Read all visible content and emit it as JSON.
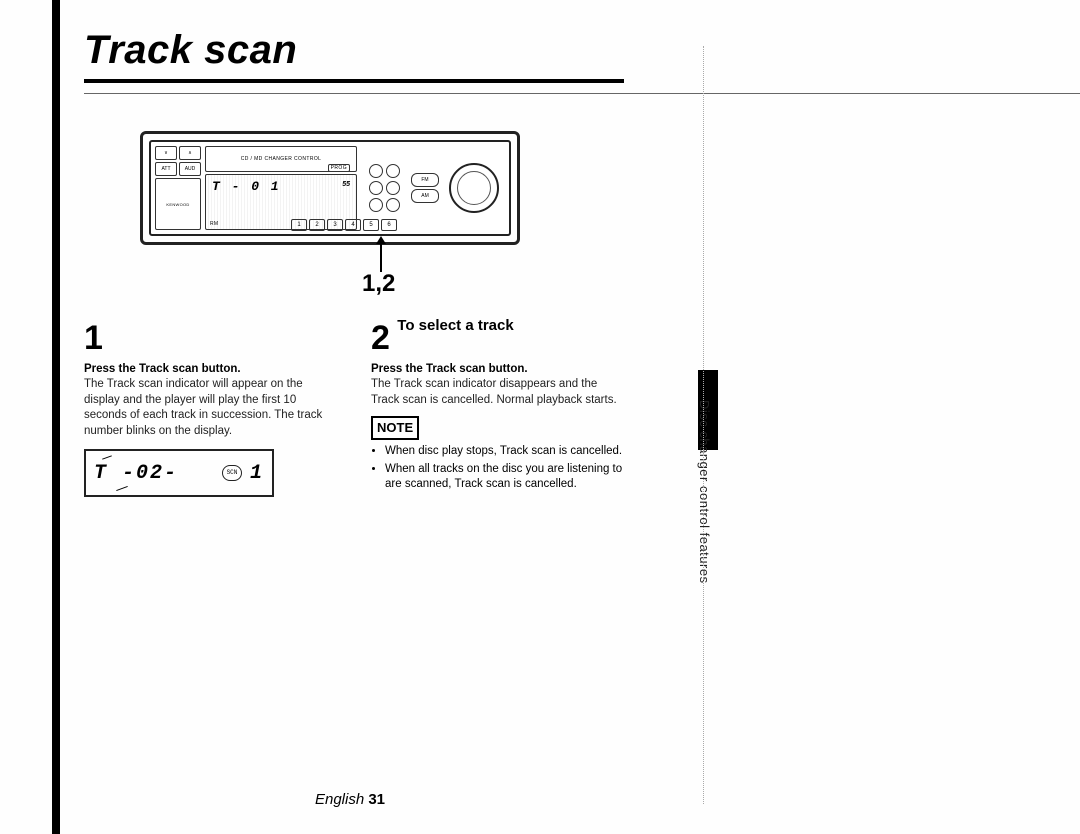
{
  "title": "Track scan",
  "hero": {
    "top_label": "CD / MD CHANGER CONTROL",
    "btn_v": "∨",
    "btn_a": "∧",
    "btn_att": "ATT",
    "btn_aud": "AUD",
    "lcd_main": "T - 0 1",
    "lcd_right": "55",
    "lcd_sub": "RM",
    "brand": "KENWOOD",
    "fm_label": "FM",
    "am_label": "AM",
    "prog_label": "PROG",
    "presets": [
      "1",
      "2",
      "3",
      "4",
      "5",
      "6"
    ]
  },
  "pointer_label": "1,2",
  "step1": {
    "num": "1",
    "bold": "Press the Track scan button.",
    "para": "The Track scan indicator will appear on the display and the player will play the first 10 seconds of each track in succession. The track number blinks on the display.",
    "lcd": "T -02-",
    "lcd_r": "1",
    "lcd_badge": "SCN"
  },
  "step2": {
    "num": "2",
    "heading": "To select a track",
    "bold": "Press the Track scan button.",
    "para": "The Track scan indicator disappears and the Track scan is cancelled. Normal playback starts.",
    "note_label": "NOTE",
    "notes": [
      "When disc play stops, Track scan is cancelled.",
      "When all tracks on the disc you are listening to are scanned, Track scan is cancelled."
    ]
  },
  "side_tab": "Disc changer control features",
  "footer_lang": "English",
  "footer_page": "31"
}
